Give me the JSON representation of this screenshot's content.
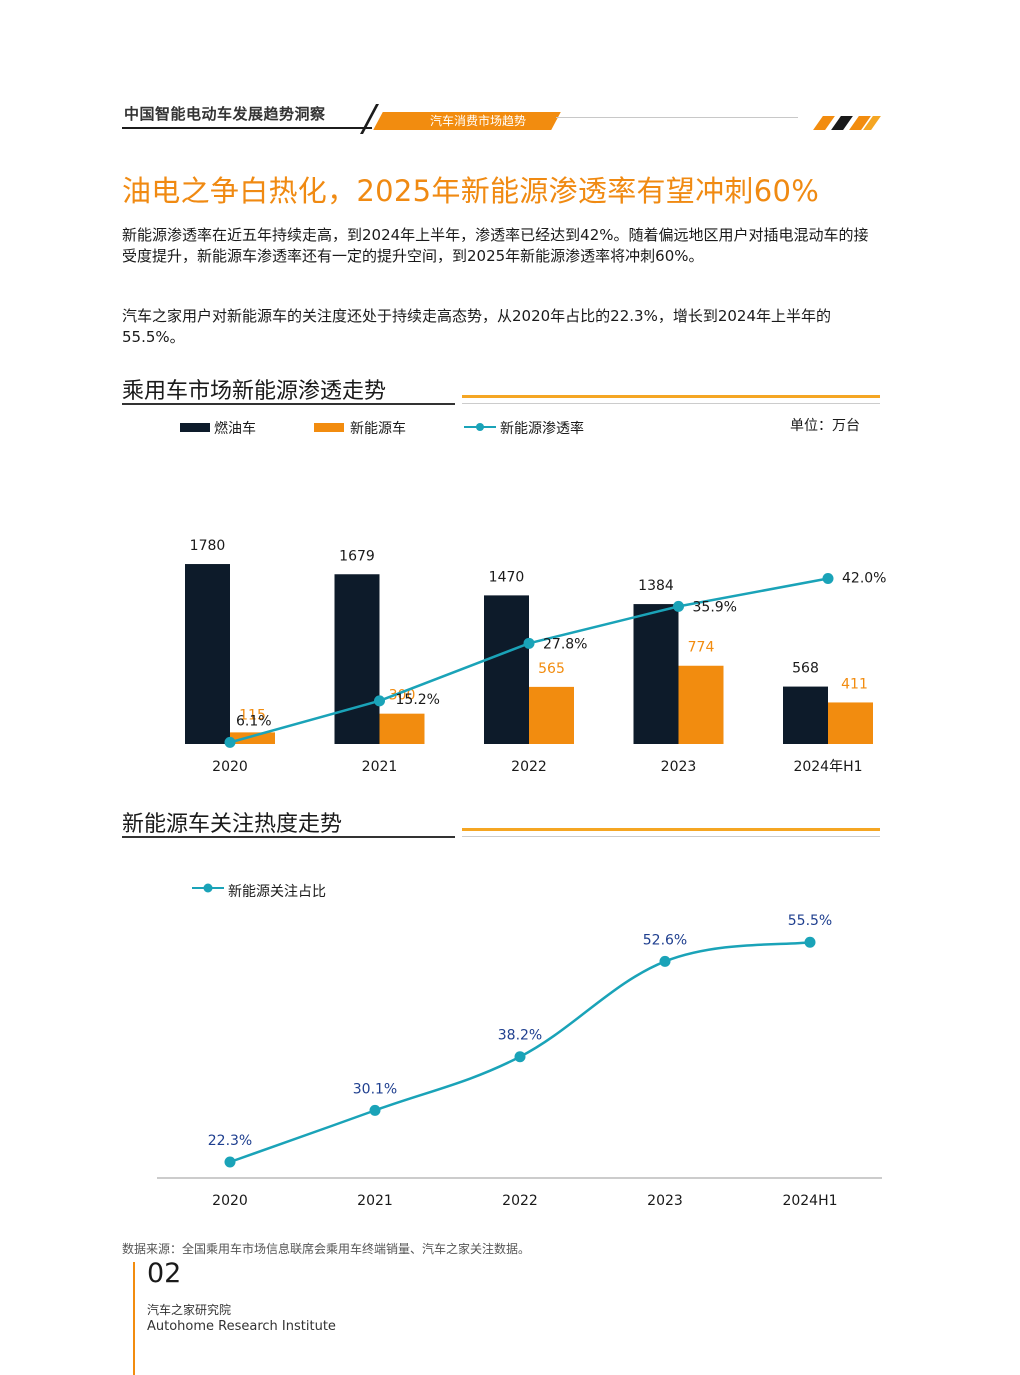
{
  "header": {
    "report_title": "中国智能电动车发展趋势洞察",
    "section_tab": "汽车消费市场趋势"
  },
  "main_title": "油电之争白热化，2025年新能源渗透率有望冲刺60%",
  "paragraphs": [
    "新能源渗透率在近五年持续走高，到2024年上半年，渗透率已经达到42%。随着偏远地区用户对插电混动车的接受度提升，新能源车渗透率还有一定的提升空间，到2025年新能源渗透率将冲刺60%。",
    "汽车之家用户对新能源车的关注度还处于持续走高态势，从2020年占比的22.3%，增长到2024年上半年的55.5%。"
  ],
  "chart1_title": "乘用车市场新能源渗透走势",
  "chart2_title": "新能源车关注热度走势",
  "colors": {
    "fuel": "#0d1b2a",
    "nev": "#f28c0f",
    "line": "#1aa3b8",
    "accent": "#f08a12",
    "label_blue": "#1f3f8f"
  },
  "chart_data": [
    {
      "type": "bar",
      "unit_label": "单位：万台",
      "categories": [
        "2020",
        "2021",
        "2022",
        "2023",
        "2024年H1"
      ],
      "series": [
        {
          "name": "燃油车",
          "type": "bar",
          "values": [
            1780,
            1679,
            1470,
            1384,
            568
          ]
        },
        {
          "name": "新能源车",
          "type": "bar",
          "values": [
            115,
            300,
            565,
            774,
            411
          ]
        },
        {
          "name": "新能源渗透率",
          "type": "line",
          "values": [
            6.1,
            15.2,
            27.8,
            35.9,
            42.0
          ],
          "labels": [
            "6.1%",
            "15.2%",
            "27.8%",
            "35.9%",
            "42.0%"
          ]
        }
      ],
      "legend_position": "top"
    },
    {
      "type": "line",
      "categories": [
        "2020",
        "2021",
        "2022",
        "2023",
        "2024H1"
      ],
      "series": [
        {
          "name": "新能源关注占比",
          "values": [
            22.3,
            30.1,
            38.2,
            52.6,
            55.5
          ],
          "labels": [
            "22.3%",
            "30.1%",
            "38.2%",
            "52.6%",
            "55.5%"
          ]
        }
      ],
      "legend_position": "top-left"
    }
  ],
  "footer": {
    "source": "数据来源：全国乘用车市场信息联席会乘用车终端销量、汽车之家关注数据。",
    "page_number": "02",
    "institute_cn": "汽车之家研究院",
    "institute_en": "Autohome Research Institute"
  }
}
